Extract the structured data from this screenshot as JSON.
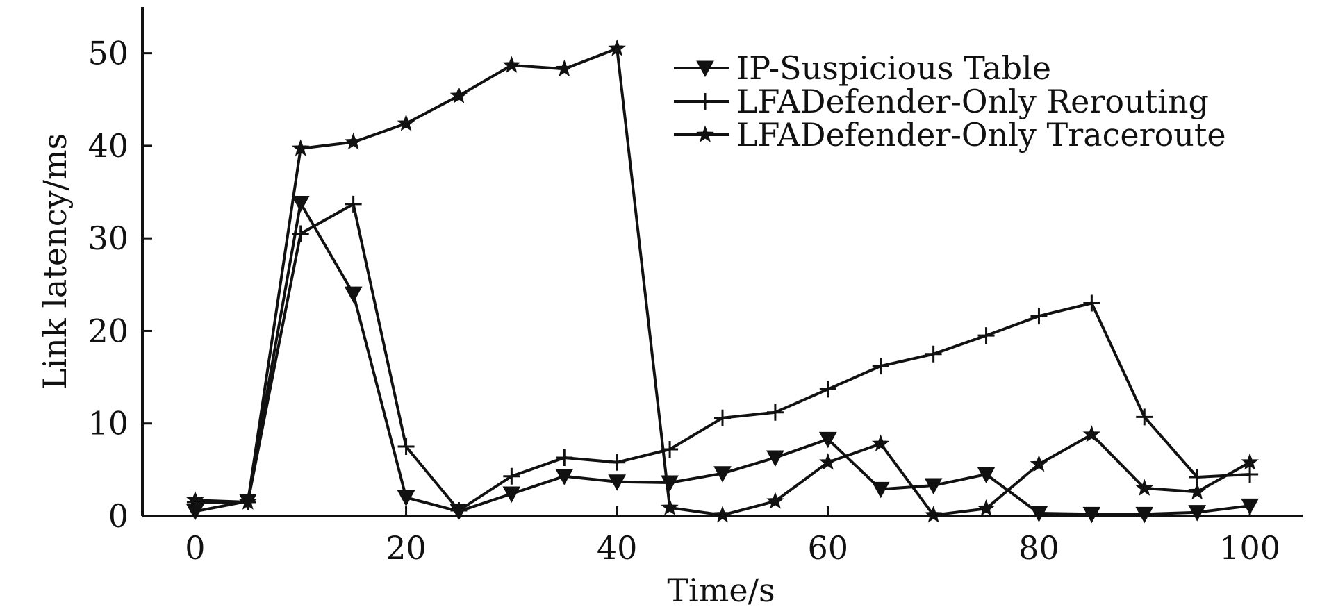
{
  "chart_data": {
    "type": "line",
    "title": "",
    "xlabel": "Time/s",
    "ylabel": "Link latency/ms",
    "xlim": [
      -5,
      105
    ],
    "ylim": [
      0,
      55
    ],
    "x_ticks": [
      0,
      20,
      40,
      60,
      80,
      100
    ],
    "y_ticks": [
      0,
      10,
      20,
      30,
      40,
      50
    ],
    "grid": false,
    "legend_position": "top-right",
    "x": [
      0,
      5,
      10,
      15,
      20,
      25,
      30,
      35,
      40,
      45,
      50,
      55,
      60,
      65,
      70,
      75,
      80,
      85,
      90,
      95,
      100
    ],
    "series": [
      {
        "name": "IP-Suspicious Table",
        "marker": "triangle-down",
        "values": [
          0.5,
          1.6,
          33.8,
          24.0,
          2.0,
          0.5,
          2.4,
          4.3,
          3.7,
          3.6,
          4.6,
          6.3,
          8.3,
          2.9,
          3.3,
          4.5,
          0.3,
          0.2,
          0.2,
          0.4,
          1.1
        ]
      },
      {
        "name": "LFADefender-Only Rerouting",
        "marker": "plus",
        "values": [
          1.5,
          1.5,
          30.5,
          33.7,
          7.5,
          0.6,
          4.3,
          6.3,
          5.8,
          7.2,
          10.6,
          11.2,
          13.7,
          16.2,
          17.5,
          19.5,
          21.6,
          23.0,
          10.7,
          4.2,
          4.5
        ]
      },
      {
        "name": "LFADefender-Only Traceroute",
        "marker": "star",
        "values": [
          1.7,
          1.5,
          39.7,
          40.4,
          42.4,
          45.4,
          48.7,
          48.3,
          50.5,
          0.9,
          0.1,
          1.6,
          5.8,
          7.8,
          0.1,
          0.8,
          5.6,
          8.8,
          3.0,
          2.6,
          5.8
        ]
      }
    ]
  }
}
